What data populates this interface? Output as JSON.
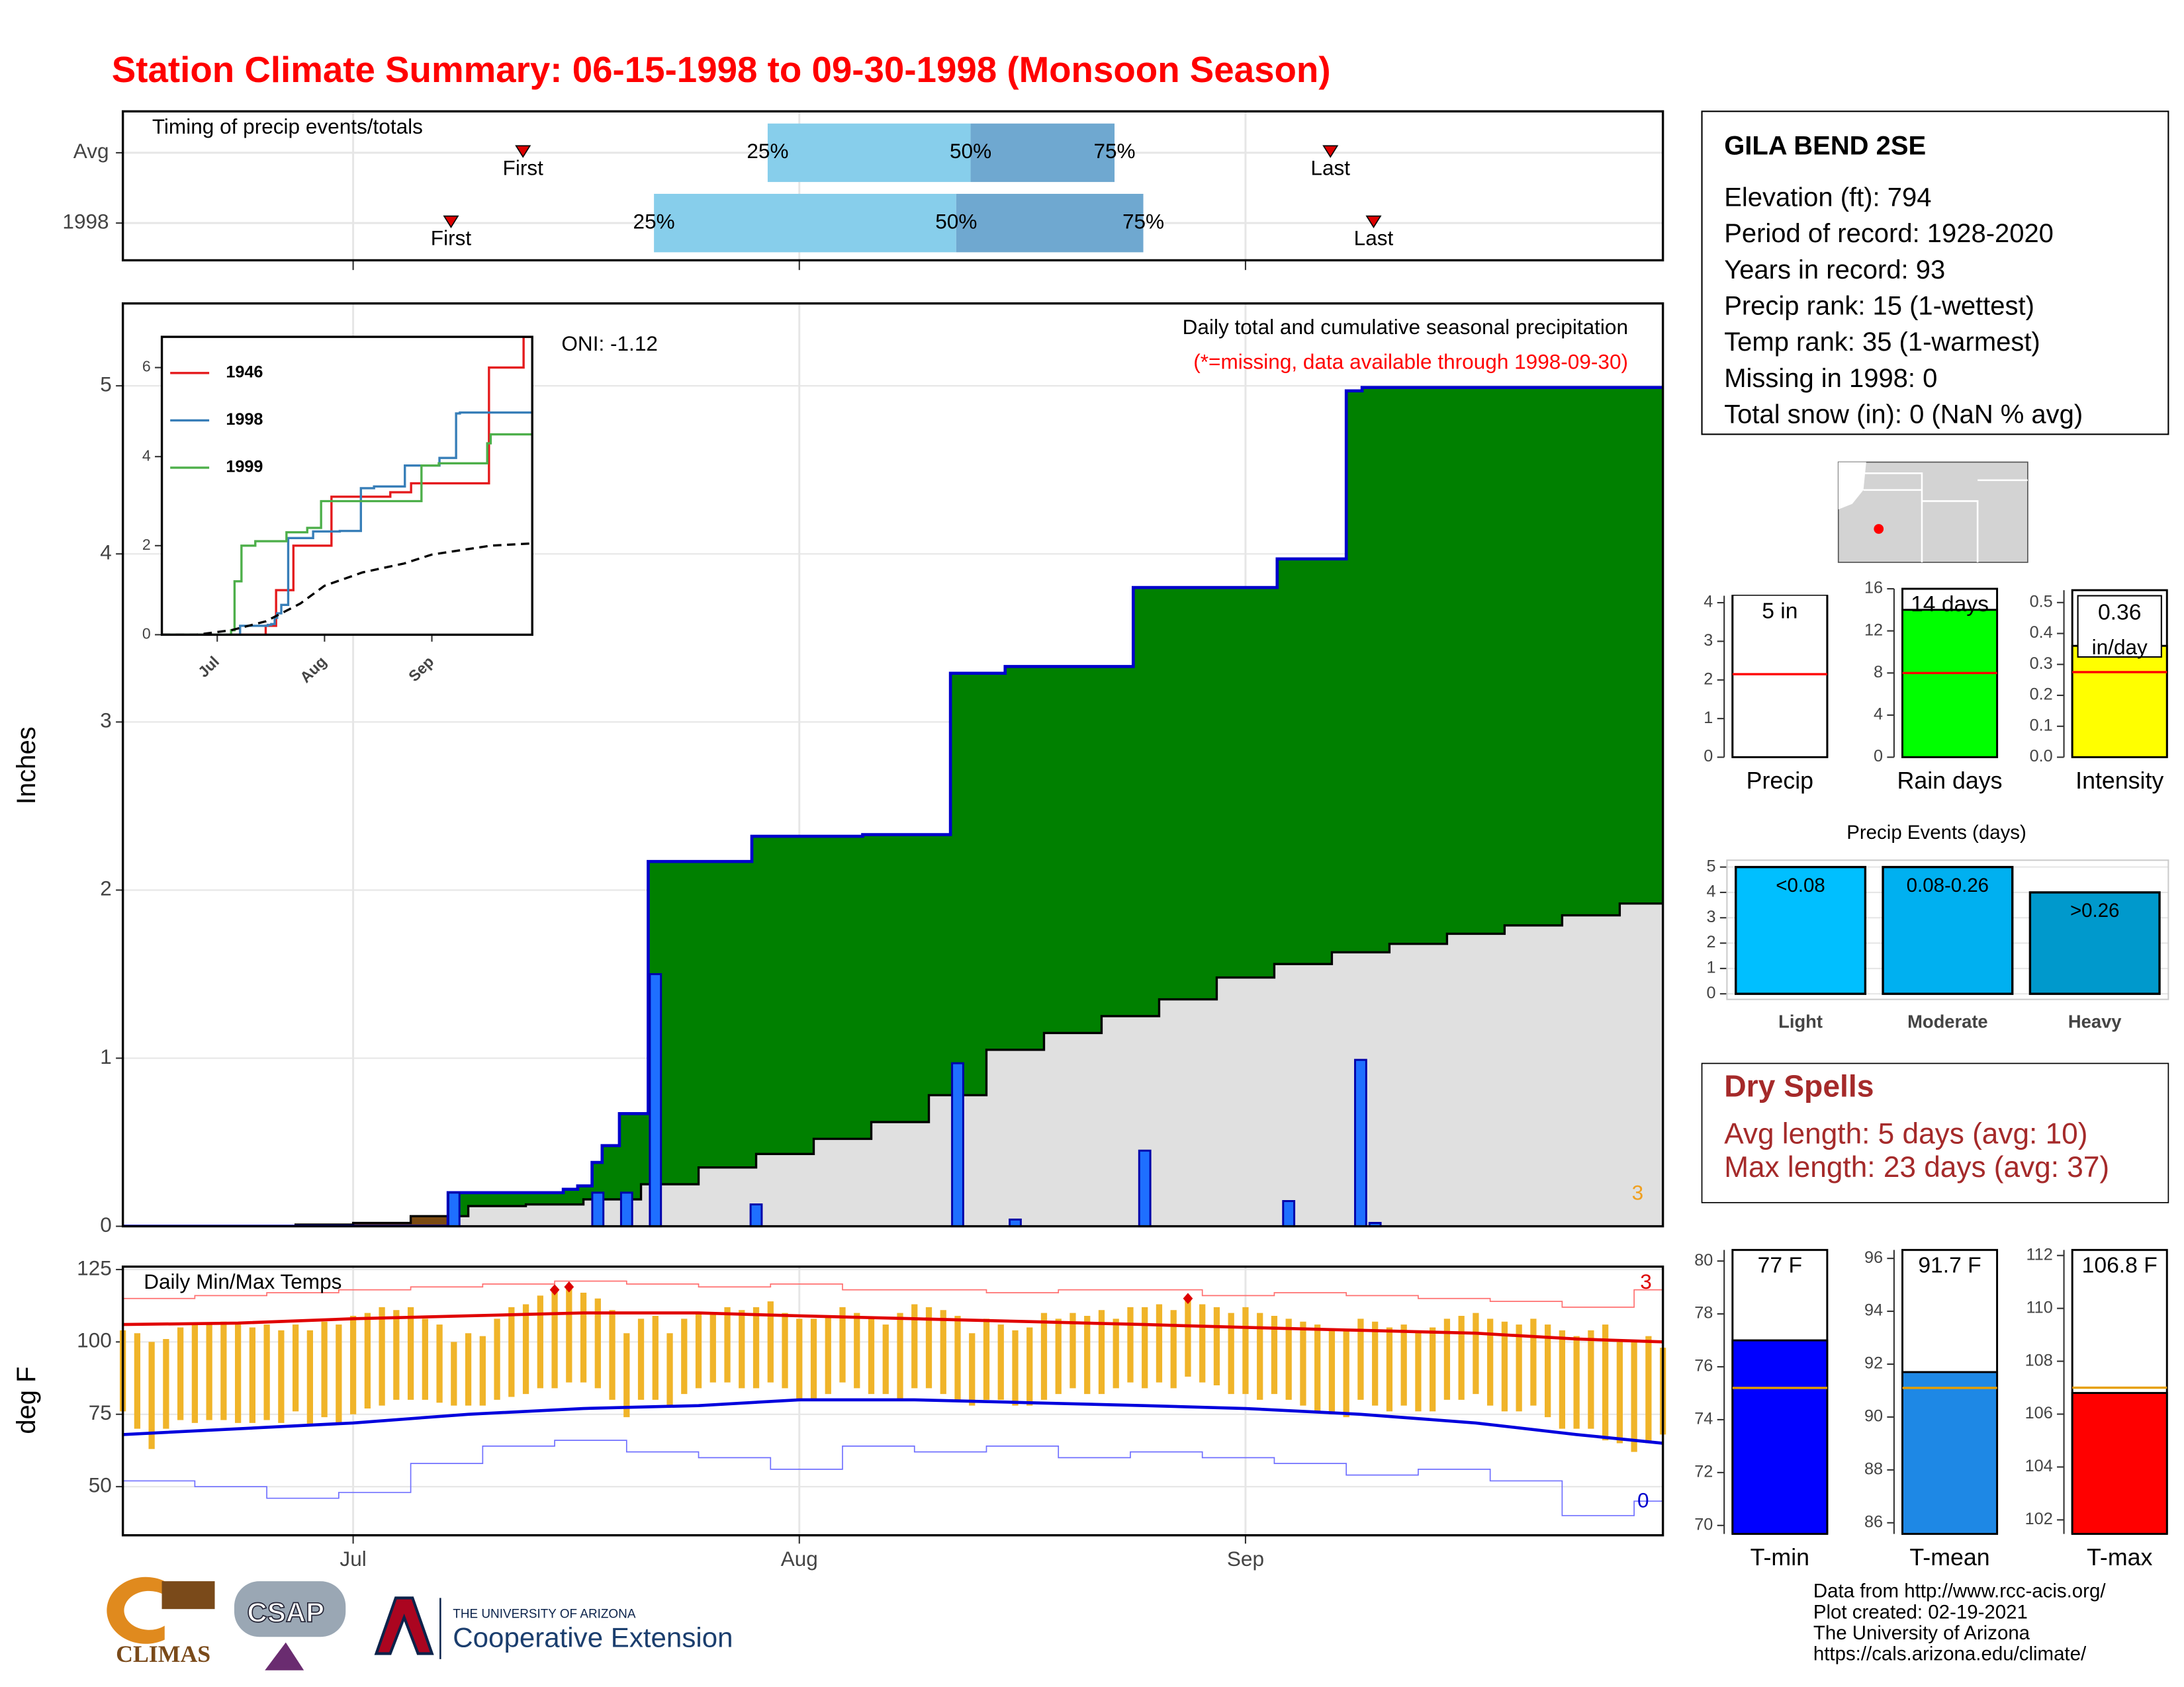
{
  "title": "Station Climate Summary: 06-15-1998 to 09-30-1998 (Monsoon Season)",
  "station": {
    "name": "GILA BEND 2SE",
    "lines": [
      "Elevation (ft): 794",
      "Period of record: 1928-2020",
      "Years in record: 93",
      "Precip rank: 15 (1-wettest)",
      "Temp rank: 35 (1-warmest)",
      "Missing in 1998: 0",
      "Total snow (in): 0 (NaN % avg)"
    ]
  },
  "dry_spells": {
    "title": "Dry Spells",
    "lines": [
      "Avg length: 5 days (avg: 10)",
      "Max length: 23 days (avg: 37)"
    ]
  },
  "footer": {
    "lines": [
      "Data from http://www.rcc-acis.org/",
      "Plot created: 02-19-2021",
      "The University of Arizona",
      "https://cals.arizona.edu/climate/"
    ],
    "logos": [
      "CLIMAS",
      "CSAP",
      "THE UNIVERSITY OF ARIZONA",
      "Cooperative Extension"
    ]
  },
  "chart_data": [
    {
      "type": "timing",
      "title": "Timing of precip events/totals",
      "categories": [
        "Avg",
        "1998"
      ],
      "first": [
        27.8,
        22.8
      ],
      "p25": [
        44.8,
        36.9
      ],
      "p50": [
        58.9,
        57.9
      ],
      "p75": [
        68.9,
        70.9
      ],
      "last": [
        83.9,
        86.9
      ],
      "quantile_labels": [
        "25%",
        "50%",
        "75%"
      ],
      "first_label": "First",
      "last_label": "Last",
      "xlim": [
        0,
        107
      ],
      "xticks": [
        16,
        47,
        78
      ],
      "colors": [
        "#87ceeb",
        "#6fa8d0"
      ],
      "marker_color": "#dd0000"
    },
    {
      "type": "precip",
      "ylabel": "Inches",
      "annotations": [
        "ONI: -1.12",
        "Daily total and cumulative seasonal precipitation",
        "(*=missing, data available through 1998-09-30)"
      ],
      "count_note": 3,
      "xlim": [
        0,
        107
      ],
      "xticks": [
        16,
        47,
        78
      ],
      "ylim": [
        0,
        5.49
      ],
      "yticks": [
        0,
        1,
        2,
        3,
        4,
        5
      ],
      "grid": true,
      "daily": {
        "x": [
          23,
          33,
          35,
          37,
          44,
          58,
          62,
          71,
          81,
          86,
          87
        ],
        "values": [
          0.2,
          0.2,
          0.2,
          1.5,
          0.13,
          0.97,
          0.04,
          0.45,
          0.15,
          0.99,
          0.02
        ],
        "color": "#1e6fff"
      },
      "observed": {
        "x": [
          0,
          22.6,
          30.6,
          31.6,
          32.6,
          33.3,
          34.5,
          36.5,
          43.7,
          51.4,
          57.5,
          61.3,
          70.2,
          80.2,
          85.0,
          86.1
        ],
        "values": [
          0,
          0.2,
          0.22,
          0.24,
          0.38,
          0.48,
          0.67,
          2.17,
          2.32,
          2.33,
          3.29,
          3.33,
          3.8,
          3.97,
          4.97,
          4.99
        ],
        "color": "#0000cc"
      },
      "average": {
        "x": [
          0,
          4,
          8,
          12,
          16,
          20,
          24,
          28,
          32,
          36,
          40,
          44,
          48,
          52,
          56,
          60,
          64,
          68,
          72,
          76,
          80,
          84,
          88,
          92,
          96,
          100,
          104,
          107
        ],
        "values": [
          0,
          0,
          0,
          0.01,
          0.02,
          0.06,
          0.12,
          0.13,
          0.16,
          0.25,
          0.35,
          0.43,
          0.52,
          0.62,
          0.78,
          1.05,
          1.15,
          1.25,
          1.35,
          1.48,
          1.56,
          1.63,
          1.68,
          1.74,
          1.79,
          1.85,
          1.92,
          1.98
        ],
        "color": "#000000"
      },
      "fill_colors": {
        "above": "#008000",
        "below": "#7b4a12",
        "normal": "#e0e0e0"
      }
    },
    {
      "type": "line",
      "xlim": [
        0,
        107
      ],
      "xticks": [
        {
          "value": 16,
          "label": "Jul"
        },
        {
          "value": 47,
          "label": "Aug"
        },
        {
          "value": 78,
          "label": "Sep"
        }
      ],
      "ylim": [
        0,
        6.69
      ],
      "yticks": [
        0,
        2,
        4,
        6
      ],
      "series": [
        {
          "name": "1946",
          "color": "#e41a1c",
          "x": [
            0,
            30,
            33,
            38,
            49,
            66,
            72,
            94.5,
            104,
            104.5
          ],
          "values": [
            0,
            0.2,
            1.0,
            2.0,
            3.1,
            3.2,
            3.4,
            6.0,
            6.0,
            6.69
          ]
        },
        {
          "name": "1998",
          "color": "#377eb8",
          "x": [
            0,
            22.6,
            30.6,
            31.6,
            32.6,
            33.3,
            34.5,
            36.5,
            43.7,
            51.4,
            57.5,
            61.3,
            70.2,
            80.2,
            85.0,
            86.1
          ],
          "values": [
            0,
            0.2,
            0.22,
            0.24,
            0.38,
            0.48,
            0.67,
            2.17,
            2.32,
            2.33,
            3.29,
            3.33,
            3.8,
            3.97,
            4.97,
            4.99
          ]
        },
        {
          "name": "1999",
          "color": "#4daf4a",
          "x": [
            0,
            20,
            21,
            23,
            27,
            36,
            42,
            46,
            72,
            75,
            80,
            94,
            95
          ],
          "values": [
            0,
            0.1,
            1.2,
            2.0,
            2.1,
            2.3,
            2.4,
            3.0,
            3.0,
            3.8,
            3.85,
            4.3,
            4.5
          ]
        },
        {
          "color": "#000000",
          "dash": true,
          "x": [
            0,
            10,
            20,
            30,
            40,
            47,
            58,
            70,
            78,
            95,
            107
          ],
          "values": [
            0,
            0,
            0.1,
            0.3,
            0.7,
            1.1,
            1.4,
            1.6,
            1.8,
            2.0,
            2.05
          ]
        }
      ]
    },
    {
      "type": "temps",
      "title": "Daily Min/Max Temps",
      "ylabel": "deg F",
      "xlim": [
        0,
        107
      ],
      "xticks": [
        {
          "value": 16,
          "label": "Jul"
        },
        {
          "value": 47,
          "label": "Aug"
        },
        {
          "value": 78,
          "label": "Sep"
        }
      ],
      "ylim": [
        33.2,
        126
      ],
      "yticks": [
        50,
        75,
        100,
        125
      ],
      "bar_color": "#f0b429",
      "x": [
        0,
        1,
        2,
        3,
        4,
        5,
        6,
        7,
        8,
        9,
        10,
        11,
        12,
        13,
        14,
        15,
        16,
        17,
        18,
        19,
        20,
        21,
        22,
        23,
        24,
        25,
        26,
        27,
        28,
        29,
        30,
        31,
        32,
        33,
        34,
        35,
        36,
        37,
        38,
        39,
        40,
        41,
        42,
        43,
        44,
        45,
        46,
        47,
        48,
        49,
        50,
        51,
        52,
        53,
        54,
        55,
        56,
        57,
        58,
        59,
        60,
        61,
        62,
        63,
        64,
        65,
        66,
        67,
        68,
        69,
        70,
        71,
        72,
        73,
        74,
        75,
        76,
        77,
        78,
        79,
        80,
        81,
        82,
        83,
        84,
        85,
        86,
        87,
        88,
        89,
        90,
        91,
        92,
        93,
        94,
        95,
        96,
        97,
        98,
        99,
        100,
        101,
        102,
        103,
        104,
        105,
        106,
        107
      ],
      "tmax": [
        104,
        103,
        100,
        101,
        105,
        106,
        106,
        107,
        106,
        105,
        106,
        104,
        106,
        104,
        107,
        106,
        109,
        110,
        112,
        111,
        112,
        108,
        106,
        100,
        103,
        102,
        108,
        112,
        113,
        116,
        118,
        119,
        117,
        115,
        111,
        103,
        108,
        109,
        103,
        108,
        110,
        110,
        112,
        111,
        112,
        114,
        110,
        108,
        108,
        109,
        112,
        110,
        108,
        106,
        110,
        113,
        112,
        111,
        109,
        103,
        108,
        106,
        104,
        105,
        110,
        108,
        110,
        109,
        111,
        108,
        112,
        112,
        113,
        111,
        115,
        113,
        112,
        110,
        112,
        110,
        109,
        108,
        107,
        106,
        104,
        104,
        108,
        107,
        105,
        106,
        104,
        105,
        108,
        109,
        110,
        108,
        107,
        106,
        108,
        106,
        104,
        102,
        104,
        106,
        100,
        100,
        102,
        98
      ],
      "tmin": [
        76,
        70,
        63,
        70,
        73,
        72,
        73,
        73,
        72,
        72,
        73,
        72,
        76,
        71,
        74,
        72,
        75,
        77,
        78,
        80,
        80,
        80,
        79,
        78,
        78,
        78,
        80,
        81,
        82,
        84,
        84,
        86,
        86,
        84,
        80,
        74,
        80,
        80,
        78,
        82,
        84,
        86,
        86,
        84,
        84,
        86,
        84,
        80,
        80,
        82,
        86,
        84,
        82,
        82,
        80,
        84,
        84,
        82,
        80,
        78,
        80,
        80,
        78,
        78,
        80,
        82,
        84,
        82,
        82,
        84,
        86,
        84,
        86,
        84,
        88,
        86,
        85,
        82,
        82,
        80,
        82,
        80,
        78,
        76,
        75,
        74,
        80,
        78,
        76,
        78,
        76,
        76,
        80,
        80,
        82,
        78,
        76,
        76,
        78,
        74,
        70,
        70,
        70,
        66,
        65,
        62,
        65,
        68
      ],
      "normal_max": {
        "color": "#e00000",
        "x": [
          0,
          8,
          16,
          24,
          32,
          40,
          47,
          55,
          63,
          71,
          78,
          86,
          94,
          101,
          107
        ],
        "values": [
          106,
          106.5,
          108,
          109,
          110,
          110,
          109,
          108,
          107,
          106,
          105,
          104,
          103,
          101,
          100
        ]
      },
      "normal_min": {
        "color": "#0000dd",
        "x": [
          0,
          8,
          16,
          24,
          32,
          40,
          47,
          55,
          63,
          71,
          78,
          86,
          94,
          101,
          107
        ],
        "values": [
          68,
          70,
          72,
          75,
          77,
          78,
          80,
          80,
          79,
          78,
          77,
          75,
          72,
          68,
          65
        ]
      },
      "record_max": {
        "color": "#ff7070",
        "x": [
          0,
          5,
          10,
          15,
          20,
          25,
          30,
          35,
          40,
          45,
          50,
          55,
          60,
          65,
          70,
          75,
          80,
          85,
          90,
          95,
          100,
          105
        ],
        "values": [
          115,
          116,
          117,
          118,
          119,
          120,
          121,
          120,
          119,
          120,
          118,
          118,
          117,
          118,
          118,
          116,
          117,
          116,
          115,
          114,
          112,
          118
        ]
      },
      "record_min": {
        "color": "#7070ff",
        "x": [
          0,
          5,
          10,
          15,
          20,
          25,
          30,
          35,
          40,
          45,
          50,
          55,
          60,
          65,
          70,
          75,
          80,
          85,
          90,
          95,
          100,
          105
        ],
        "values": [
          52,
          50,
          46,
          48,
          58,
          64,
          66,
          62,
          60,
          56,
          64,
          62,
          64,
          60,
          62,
          60,
          58,
          54,
          56,
          52,
          40,
          45
        ]
      },
      "record_high_days": [
        30,
        31,
        74
      ],
      "record_high_count": 3,
      "record_low_count": 0,
      "record_color": "#dd0000"
    },
    {
      "type": "gauge",
      "label": "Precip",
      "value": 5,
      "value_label": "5 in",
      "average": 2.15,
      "ylim": [
        0,
        4.18
      ],
      "yticks": [
        0,
        1,
        2,
        3,
        4
      ],
      "color": "#ffffff",
      "average_color": "#ff0000"
    },
    {
      "type": "gauge",
      "label": "Rain days",
      "value": 14,
      "value_label": "14 days",
      "average": 8,
      "ylim": [
        0,
        16
      ],
      "yticks": [
        0,
        4,
        8,
        12,
        16
      ],
      "color": "#00ff00",
      "average_color": "#ff0000"
    },
    {
      "type": "gauge",
      "label": "Intensity",
      "value": 0.36,
      "value_label": "0.36",
      "unit_label": "in/day",
      "average": 0.275,
      "ylim": [
        0,
        0.54
      ],
      "yticks": [
        {
          "value": 0,
          "label": "0.0"
        },
        0.1,
        0.2,
        0.3,
        0.4,
        0.5
      ],
      "color": "#ffff00",
      "average_color": "#ff0000"
    },
    {
      "type": "bar",
      "title": "Precip Events (days)",
      "categories": [
        "Light",
        "Moderate",
        "Heavy"
      ],
      "values": [
        5,
        5,
        4
      ],
      "class_labels": [
        "<0.08",
        "0.08-0.26",
        ">0.26"
      ],
      "colors": [
        "#00bfff",
        "#00b0f0",
        "#0099cc"
      ],
      "ylim": [
        -0.22,
        5.27
      ],
      "yticks": [
        0,
        1,
        2,
        3,
        4,
        5
      ]
    },
    {
      "type": "gauge",
      "label": "T-min",
      "value": 77,
      "value_label": "77 F",
      "average": 75.2,
      "ylim": [
        69.68,
        80.42
      ],
      "yticks": [
        70,
        72,
        74,
        76,
        78,
        80
      ],
      "color": "#0000ff",
      "average_color": "#e69f00"
    },
    {
      "type": "gauge",
      "label": "T-mean",
      "value": 91.7,
      "value_label": "91.7 F",
      "average": 91.1,
      "ylim": [
        85.58,
        96.32
      ],
      "yticks": [
        86,
        88,
        90,
        92,
        94,
        96
      ],
      "color": "#1e88e5",
      "average_color": "#e69f00"
    },
    {
      "type": "gauge",
      "label": "T-max",
      "value": 106.8,
      "value_label": "106.8 F",
      "average": 107.0,
      "ylim": [
        101.47,
        112.21
      ],
      "yticks": [
        102,
        104,
        106,
        108,
        110,
        112
      ],
      "color": "#ff0000",
      "average_color": "#e69f00"
    }
  ]
}
